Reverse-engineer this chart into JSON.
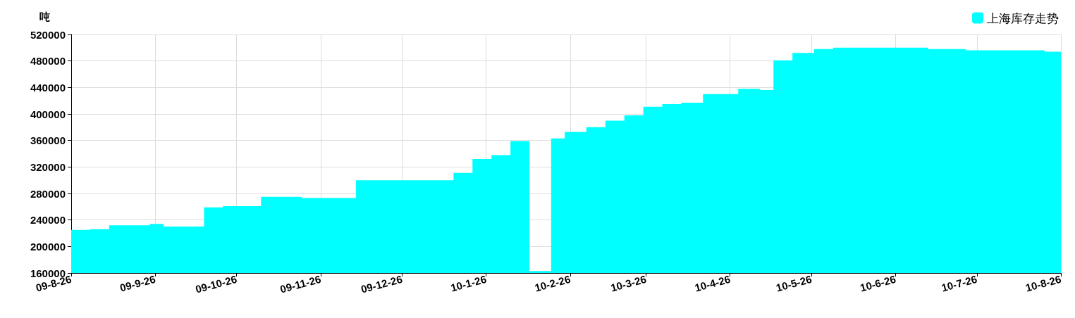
{
  "chart_data": {
    "type": "area",
    "ylabel": "吨",
    "legend": "top right",
    "grid": true,
    "xlim": [
      "2009-08-26",
      "2010-08-26"
    ],
    "xticks": [
      {
        "value": "2009-08-26",
        "label": "09-8-26"
      },
      {
        "value": "2009-09-26",
        "label": "09-9-26"
      },
      {
        "value": "2009-10-26",
        "label": "09-10-26"
      },
      {
        "value": "2009-11-26",
        "label": "09-11-26"
      },
      {
        "value": "2009-12-26",
        "label": "09-12-26"
      },
      {
        "value": "2010-01-26",
        "label": "10-1-26"
      },
      {
        "value": "2010-02-26",
        "label": "10-2-26"
      },
      {
        "value": "2010-03-26",
        "label": "10-3-26"
      },
      {
        "value": "2010-04-26",
        "label": "10-4-26"
      },
      {
        "value": "2010-05-26",
        "label": "10-5-26"
      },
      {
        "value": "2010-06-26",
        "label": "10-6-26"
      },
      {
        "value": "2010-07-26",
        "label": "10-7-26"
      },
      {
        "value": "2010-08-26",
        "label": "10-8-26"
      }
    ],
    "ylim": [
      160000,
      520000
    ],
    "yticks": [
      160000,
      200000,
      240000,
      280000,
      320000,
      360000,
      400000,
      440000,
      480000,
      520000
    ],
    "x": [
      "2009-08-26",
      "2009-09-02",
      "2009-09-09",
      "2009-09-24",
      "2009-09-29",
      "2009-10-14",
      "2009-10-21",
      "2009-11-04",
      "2009-11-19",
      "2009-12-09",
      "2010-01-14",
      "2010-01-21",
      "2010-01-28",
      "2010-02-04",
      "2010-02-11",
      "2010-02-19",
      "2010-02-24",
      "2010-03-04",
      "2010-03-11",
      "2010-03-18",
      "2010-03-25",
      "2010-04-01",
      "2010-04-08",
      "2010-04-16",
      "2010-04-29",
      "2010-05-07",
      "2010-05-12",
      "2010-05-19",
      "2010-05-27",
      "2010-06-03",
      "2010-07-08",
      "2010-07-22",
      "2010-08-20",
      "2010-08-26"
    ],
    "series": [
      {
        "name": "上海库存走势",
        "color": "#00ffff",
        "values": [
          225000,
          226000,
          232000,
          234000,
          230000,
          259000,
          261000,
          275000,
          273000,
          300000,
          311000,
          332000,
          338000,
          359000,
          163000,
          363000,
          373000,
          380000,
          390000,
          398000,
          411000,
          415000,
          417000,
          430000,
          438000,
          436000,
          481000,
          492000,
          498000,
          500000,
          498000,
          496000,
          494000,
          494000
        ]
      }
    ]
  }
}
